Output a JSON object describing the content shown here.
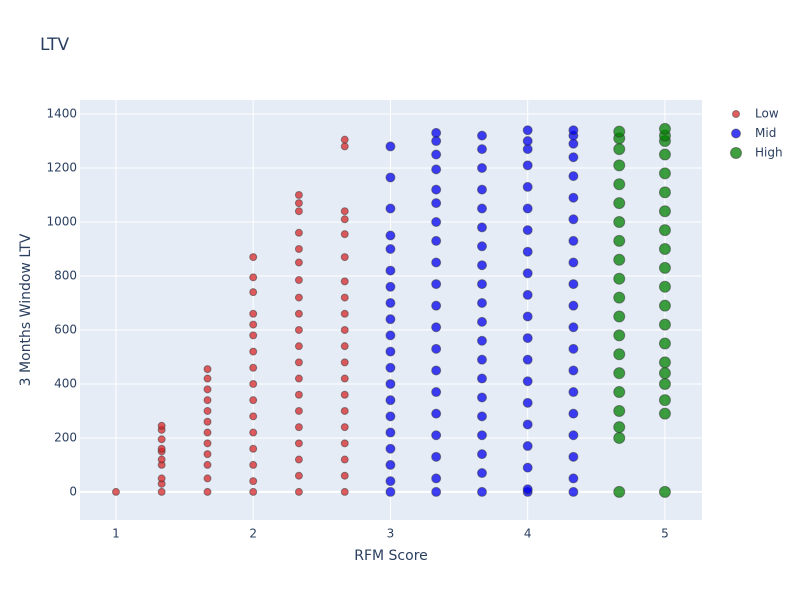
{
  "chart_data": {
    "type": "scatter",
    "title": "LTV",
    "x_label": "RFM Score",
    "y_label": "3 Months Window LTV",
    "xlim": [
      0.738,
      5.27
    ],
    "ylim": [
      -104,
      1452
    ],
    "xticks": [
      1,
      2,
      3,
      4,
      5
    ],
    "yticks": [
      0,
      200,
      400,
      600,
      800,
      1000,
      1200,
      1400
    ],
    "grid": true,
    "legend": "right",
    "series": [
      {
        "name": "Low",
        "color": "#d62728",
        "size": 7,
        "x": [
          1,
          1.333,
          1.333,
          1.333,
          1.333,
          1.333,
          1.333,
          1.333,
          1.333,
          1.333,
          1.333,
          1.667,
          1.667,
          1.667,
          1.667,
          1.667,
          1.667,
          1.667,
          1.667,
          1.667,
          1.667,
          1.667,
          1.667,
          2,
          2,
          2,
          2,
          2,
          2,
          2,
          2,
          2,
          2,
          2,
          2,
          2,
          2,
          2,
          2,
          2.333,
          2.333,
          2.333,
          2.333,
          2.333,
          2.333,
          2.333,
          2.333,
          2.333,
          2.333,
          2.333,
          2.333,
          2.333,
          2.333,
          2.333,
          2.333,
          2.333,
          2.333,
          2.333,
          2.333,
          2.667,
          2.667,
          2.667,
          2.667,
          2.667,
          2.667,
          2.667,
          2.667,
          2.667,
          2.667,
          2.667,
          2.667,
          2.667,
          2.667,
          2.667,
          2.667,
          2.667,
          2.667,
          2.667,
          2.667
        ],
        "y": [
          0,
          0,
          30,
          50,
          100,
          120,
          150,
          160,
          195,
          230,
          245,
          0,
          50,
          100,
          140,
          180,
          220,
          260,
          300,
          340,
          380,
          420,
          455,
          0,
          40,
          100,
          160,
          220,
          280,
          340,
          400,
          460,
          520,
          580,
          620,
          660,
          740,
          795,
          870,
          0,
          60,
          120,
          180,
          240,
          300,
          360,
          420,
          480,
          540,
          600,
          660,
          720,
          785,
          850,
          900,
          960,
          1040,
          1070,
          1100,
          0,
          60,
          120,
          180,
          240,
          300,
          360,
          420,
          480,
          540,
          600,
          660,
          720,
          780,
          870,
          955,
          1010,
          1040,
          1280,
          1305
        ]
      },
      {
        "name": "Mid",
        "color": "#0000ee",
        "size": 9,
        "x": [
          3,
          3,
          3,
          3,
          3,
          3,
          3,
          3,
          3,
          3,
          3,
          3,
          3,
          3,
          3,
          3,
          3,
          3,
          3,
          3,
          3.333,
          3.333,
          3.333,
          3.333,
          3.333,
          3.333,
          3.333,
          3.333,
          3.333,
          3.333,
          3.333,
          3.333,
          3.333,
          3.333,
          3.333,
          3.333,
          3.333,
          3.333,
          3.333,
          3.333,
          3.667,
          3.667,
          3.667,
          3.667,
          3.667,
          3.667,
          3.667,
          3.667,
          3.667,
          3.667,
          3.667,
          3.667,
          3.667,
          3.667,
          3.667,
          3.667,
          3.667,
          3.667,
          3.667,
          3.667,
          4,
          4,
          4,
          4,
          4,
          4,
          4,
          4,
          4,
          4,
          4,
          4,
          4,
          4,
          4,
          4,
          4,
          4,
          4,
          4,
          4.333,
          4.333,
          4.333,
          4.333,
          4.333,
          4.333,
          4.333,
          4.333,
          4.333,
          4.333,
          4.333,
          4.333,
          4.333,
          4.333,
          4.333,
          4.333,
          4.333,
          4.333,
          4.333,
          4.333
        ],
        "y": [
          0,
          40,
          100,
          160,
          220,
          280,
          340,
          400,
          460,
          520,
          580,
          640,
          700,
          760,
          820,
          900,
          950,
          1050,
          1165,
          1280,
          0,
          50,
          130,
          210,
          290,
          370,
          450,
          530,
          610,
          690,
          770,
          850,
          930,
          1000,
          1070,
          1120,
          1195,
          1250,
          1300,
          1330,
          0,
          70,
          140,
          210,
          280,
          350,
          420,
          490,
          560,
          630,
          700,
          770,
          840,
          910,
          980,
          1050,
          1120,
          1200,
          1270,
          1320,
          0,
          10,
          90,
          170,
          250,
          330,
          410,
          490,
          570,
          650,
          730,
          810,
          890,
          970,
          1050,
          1130,
          1210,
          1270,
          1300,
          1340,
          0,
          50,
          130,
          210,
          290,
          370,
          450,
          530,
          610,
          690,
          770,
          850,
          930,
          1010,
          1090,
          1170,
          1240,
          1290,
          1320,
          1340
        ]
      },
      {
        "name": "High",
        "color": "#008000",
        "size": 11,
        "x": [
          4.667,
          4.667,
          4.667,
          4.667,
          4.667,
          4.667,
          4.667,
          4.667,
          4.667,
          4.667,
          4.667,
          4.667,
          4.667,
          4.667,
          4.667,
          4.667,
          4.667,
          4.667,
          4.667,
          4.667,
          5,
          5,
          5,
          5,
          5,
          5,
          5,
          5,
          5,
          5,
          5,
          5,
          5,
          5,
          5,
          5,
          5,
          5,
          5,
          5
        ],
        "y": [
          0,
          200,
          240,
          300,
          370,
          440,
          510,
          580,
          650,
          720,
          790,
          860,
          930,
          1000,
          1070,
          1140,
          1210,
          1270,
          1310,
          1335,
          0,
          290,
          340,
          400,
          440,
          480,
          550,
          620,
          690,
          760,
          830,
          900,
          970,
          1040,
          1110,
          1180,
          1250,
          1300,
          1320,
          1345
        ]
      }
    ]
  }
}
